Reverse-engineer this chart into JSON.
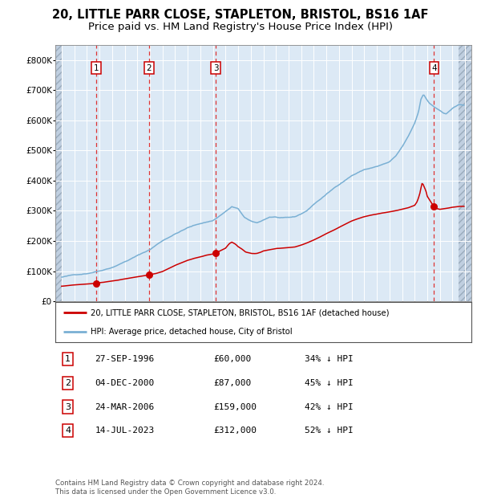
{
  "title": "20, LITTLE PARR CLOSE, STAPLETON, BRISTOL, BS16 1AF",
  "subtitle": "Price paid vs. HM Land Registry's House Price Index (HPI)",
  "title_fontsize": 10.5,
  "subtitle_fontsize": 9.5,
  "hpi_color": "#7ab0d4",
  "price_color": "#cc0000",
  "background_color": "#dce9f5",
  "hatch_color": "#c0cfe0",
  "grid_color": "#ffffff",
  "dashed_line_color": "#dd3333",
  "legend_line1": "20, LITTLE PARR CLOSE, STAPLETON, BRISTOL, BS16 1AF (detached house)",
  "legend_line2": "HPI: Average price, detached house, City of Bristol",
  "transactions": [
    {
      "num": 1,
      "date": "27-SEP-1996",
      "price": 60000,
      "pct": "34%",
      "year": 1996.75
    },
    {
      "num": 2,
      "date": "04-DEC-2000",
      "price": 87000,
      "pct": "45%",
      "year": 2000.92
    },
    {
      "num": 3,
      "date": "24-MAR-2006",
      "price": 159000,
      "pct": "42%",
      "year": 2006.22
    },
    {
      "num": 4,
      "date": "14-JUL-2023",
      "price": 312000,
      "pct": "52%",
      "year": 2023.54
    }
  ],
  "footer": "Contains HM Land Registry data © Crown copyright and database right 2024.\nThis data is licensed under the Open Government Licence v3.0.",
  "ylim": [
    0,
    850000
  ],
  "yticks": [
    0,
    100000,
    200000,
    300000,
    400000,
    500000,
    600000,
    700000,
    800000
  ],
  "xlim_start": 1993.5,
  "xlim_end": 2026.5,
  "hatch_left_end": 1994.0,
  "hatch_right_start": 2025.5,
  "hpi_anchors": {
    "1994.0": 80000,
    "1995.0": 87000,
    "1996.0": 93000,
    "1997.0": 103000,
    "1998.0": 116000,
    "1999.0": 135000,
    "2000.0": 155000,
    "2001.0": 175000,
    "2002.0": 205000,
    "2003.0": 228000,
    "2004.0": 248000,
    "2005.0": 262000,
    "2006.0": 272000,
    "2007.0": 302000,
    "2007.5": 318000,
    "2008.0": 310000,
    "2008.5": 282000,
    "2009.0": 268000,
    "2009.5": 262000,
    "2010.0": 272000,
    "2010.5": 282000,
    "2011.0": 282000,
    "2011.5": 278000,
    "2012.0": 278000,
    "2012.5": 280000,
    "2013.0": 290000,
    "2013.5": 302000,
    "2014.0": 322000,
    "2015.0": 355000,
    "2016.0": 388000,
    "2017.0": 418000,
    "2018.0": 438000,
    "2019.0": 448000,
    "2019.5": 455000,
    "2020.0": 462000,
    "2020.5": 480000,
    "2021.0": 510000,
    "2021.5": 545000,
    "2022.0": 588000,
    "2022.3": 625000,
    "2022.5": 668000,
    "2022.7": 685000,
    "2022.9": 672000,
    "2023.2": 655000,
    "2023.5": 645000,
    "2024.0": 632000,
    "2024.3": 622000,
    "2024.5": 620000,
    "2025.0": 638000,
    "2025.5": 648000
  },
  "pp_anchors": {
    "1994.0": 50000,
    "1995.0": 54000,
    "1996.0": 57000,
    "1996.75": 60000,
    "1997.5": 64000,
    "1998.5": 70000,
    "1999.5": 78000,
    "2000.5": 84000,
    "2000.92": 87000,
    "2001.5": 92000,
    "2002.0": 98000,
    "2002.5": 108000,
    "2003.0": 118000,
    "2003.5": 127000,
    "2004.0": 135000,
    "2004.5": 141000,
    "2005.0": 146000,
    "2005.5": 152000,
    "2006.0": 156000,
    "2006.22": 159000,
    "2006.5": 165000,
    "2007.0": 175000,
    "2007.3": 190000,
    "2007.5": 195000,
    "2007.8": 188000,
    "2008.0": 180000,
    "2008.3": 172000,
    "2008.6": 162000,
    "2009.0": 158000,
    "2009.3": 157000,
    "2009.5": 158000,
    "2009.8": 162000,
    "2010.0": 166000,
    "2010.5": 170000,
    "2011.0": 174000,
    "2011.5": 175000,
    "2012.0": 177000,
    "2012.5": 179000,
    "2013.0": 185000,
    "2013.5": 193000,
    "2014.0": 202000,
    "2014.5": 212000,
    "2015.0": 223000,
    "2015.5": 233000,
    "2016.0": 244000,
    "2016.5": 255000,
    "2017.0": 265000,
    "2017.5": 273000,
    "2018.0": 280000,
    "2018.5": 285000,
    "2019.0": 289000,
    "2019.5": 293000,
    "2020.0": 296000,
    "2020.5": 300000,
    "2021.0": 305000,
    "2021.5": 310000,
    "2022.0": 318000,
    "2022.2": 330000,
    "2022.4": 355000,
    "2022.5": 375000,
    "2022.6": 393000,
    "2022.7": 385000,
    "2022.9": 365000,
    "2023.0": 348000,
    "2023.2": 335000,
    "2023.4": 322000,
    "2023.54": 312000,
    "2023.7": 308000,
    "2024.0": 305000,
    "2024.5": 308000,
    "2025.0": 312000,
    "2025.5": 315000
  }
}
